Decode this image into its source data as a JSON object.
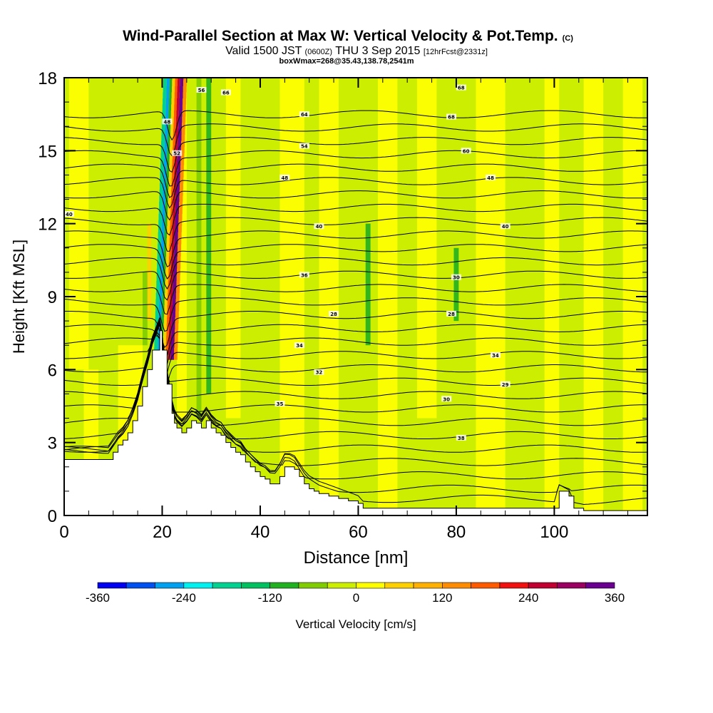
{
  "chart_data": {
    "type": "heatmap",
    "title": "Wind-Parallel Section at Max W: Vertical Velocity & Pot.Temp.",
    "title_mark": "(C)",
    "subtitle": {
      "valid": "Valid 1500 JST",
      "utc": "(0600Z)",
      "date": "THU 3 Sep 2015",
      "forecast": "[12hrFcst@2331z]"
    },
    "subtitle2": "boxWmax=268@35.43,138.78,2541m",
    "xlabel": "Distance [nm]",
    "ylabel": "Height [Kft MSL]",
    "xlim": [
      0,
      119
    ],
    "ylim": [
      0,
      18
    ],
    "x_ticks": [
      0,
      20,
      40,
      60,
      80,
      100
    ],
    "x_tick_labels": [
      "0",
      "20",
      "40",
      "60",
      "80",
      "100"
    ],
    "y_ticks": [
      0,
      3,
      6,
      9,
      12,
      15,
      18
    ],
    "y_tick_labels": [
      "0",
      "3",
      "6",
      "9",
      "12",
      "15",
      "18"
    ],
    "colorbar": {
      "label": "Vertical Velocity [cm/s]",
      "range": [
        -360,
        360
      ],
      "step": 40,
      "tick_values": [
        -360,
        -240,
        -120,
        0,
        120,
        240,
        360
      ],
      "tick_labels": [
        "-360",
        "-240",
        "-120",
        "0",
        "120",
        "240",
        "360"
      ],
      "colors": [
        "#0000f0",
        "#0050f0",
        "#00a0f0",
        "#00f0f0",
        "#00d090",
        "#00c060",
        "#20b020",
        "#80cc00",
        "#ccee00",
        "#ffff00",
        "#ffd000",
        "#ffb000",
        "#ff8c00",
        "#ff5a00",
        "#f01010",
        "#c00030",
        "#9a0060",
        "#6a0090"
      ]
    },
    "field": {
      "variable": "Vertical Velocity [cm/s]",
      "background": "#ccee00",
      "features": [
        {
          "x": 18.5,
          "y_range": [
            7.5,
            18
          ],
          "w": -240,
          "note": "strong downdraft (blue/cyan) upstream of peak"
        },
        {
          "x": 21.5,
          "y_range": [
            6.5,
            18
          ],
          "w": 320,
          "note": "strong updraft (red/purple) at max W, tilted"
        },
        {
          "x": 26,
          "y_range": [
            4,
            18
          ],
          "w": 40,
          "note": "yellow band"
        },
        {
          "x": 29,
          "y_range": [
            5,
            18
          ],
          "w": -80,
          "note": "green band"
        },
        {
          "x": 62,
          "y_range": [
            7,
            12
          ],
          "w": -80,
          "note": "green streak"
        },
        {
          "x": 80,
          "y_range": [
            8,
            11
          ],
          "w": -80,
          "note": "green streak"
        }
      ]
    },
    "contours": {
      "variable": "Potential temperature",
      "labels": [
        {
          "x": 1,
          "y": 12.4,
          "text": "40"
        },
        {
          "x": 21,
          "y": 16.2,
          "text": "48"
        },
        {
          "x": 23,
          "y": 14.9,
          "text": "52"
        },
        {
          "x": 28,
          "y": 17.5,
          "text": "56"
        },
        {
          "x": 33,
          "y": 17.4,
          "text": "66"
        },
        {
          "x": 49,
          "y": 16.5,
          "text": "64"
        },
        {
          "x": 49,
          "y": 15.2,
          "text": "54"
        },
        {
          "x": 45,
          "y": 13.9,
          "text": "48"
        },
        {
          "x": 52,
          "y": 11.9,
          "text": "40"
        },
        {
          "x": 49,
          "y": 9.9,
          "text": "36"
        },
        {
          "x": 55,
          "y": 8.3,
          "text": "28"
        },
        {
          "x": 48,
          "y": 7.0,
          "text": "34"
        },
        {
          "x": 52,
          "y": 5.9,
          "text": "32"
        },
        {
          "x": 44,
          "y": 4.6,
          "text": "35"
        },
        {
          "x": 81,
          "y": 17.6,
          "text": "68"
        },
        {
          "x": 79,
          "y": 16.4,
          "text": "68"
        },
        {
          "x": 82,
          "y": 15.0,
          "text": "60"
        },
        {
          "x": 87,
          "y": 13.9,
          "text": "48"
        },
        {
          "x": 90,
          "y": 11.9,
          "text": "40"
        },
        {
          "x": 80,
          "y": 9.8,
          "text": "30"
        },
        {
          "x": 79,
          "y": 8.3,
          "text": "28"
        },
        {
          "x": 88,
          "y": 6.6,
          "text": "34"
        },
        {
          "x": 90,
          "y": 5.4,
          "text": "29"
        },
        {
          "x": 78,
          "y": 4.8,
          "text": "30"
        },
        {
          "x": 81,
          "y": 3.2,
          "text": "38"
        }
      ]
    },
    "terrain": {
      "x": [
        0,
        9,
        10,
        11,
        12,
        13,
        14,
        15,
        16,
        17,
        18,
        19.5,
        20,
        21,
        22,
        22.5,
        23,
        24,
        25,
        26,
        27,
        28,
        29,
        30,
        31,
        32,
        33,
        34,
        35,
        36,
        37,
        38,
        39,
        40,
        41,
        42,
        43,
        44,
        45,
        46,
        47,
        48,
        49,
        50,
        51,
        52,
        54,
        56,
        58,
        60,
        61,
        62,
        100,
        101,
        103,
        104,
        106,
        119
      ],
      "height": [
        2.3,
        2.3,
        2.6,
        2.9,
        3.1,
        3.4,
        3.9,
        4.5,
        5.3,
        6.0,
        6.8,
        7.6,
        6.8,
        5.4,
        4.2,
        3.8,
        3.6,
        3.4,
        3.6,
        3.9,
        3.8,
        3.6,
        3.9,
        3.6,
        3.4,
        3.3,
        3.0,
        2.8,
        2.6,
        2.5,
        2.2,
        2.0,
        1.8,
        1.6,
        1.5,
        1.3,
        1.3,
        1.6,
        2.0,
        2.0,
        1.9,
        1.6,
        1.3,
        1.1,
        1.0,
        0.9,
        0.8,
        0.7,
        0.6,
        0.5,
        0.3,
        0.3,
        0.3,
        1.0,
        0.8,
        0.3,
        0.2,
        0.2
      ]
    }
  }
}
